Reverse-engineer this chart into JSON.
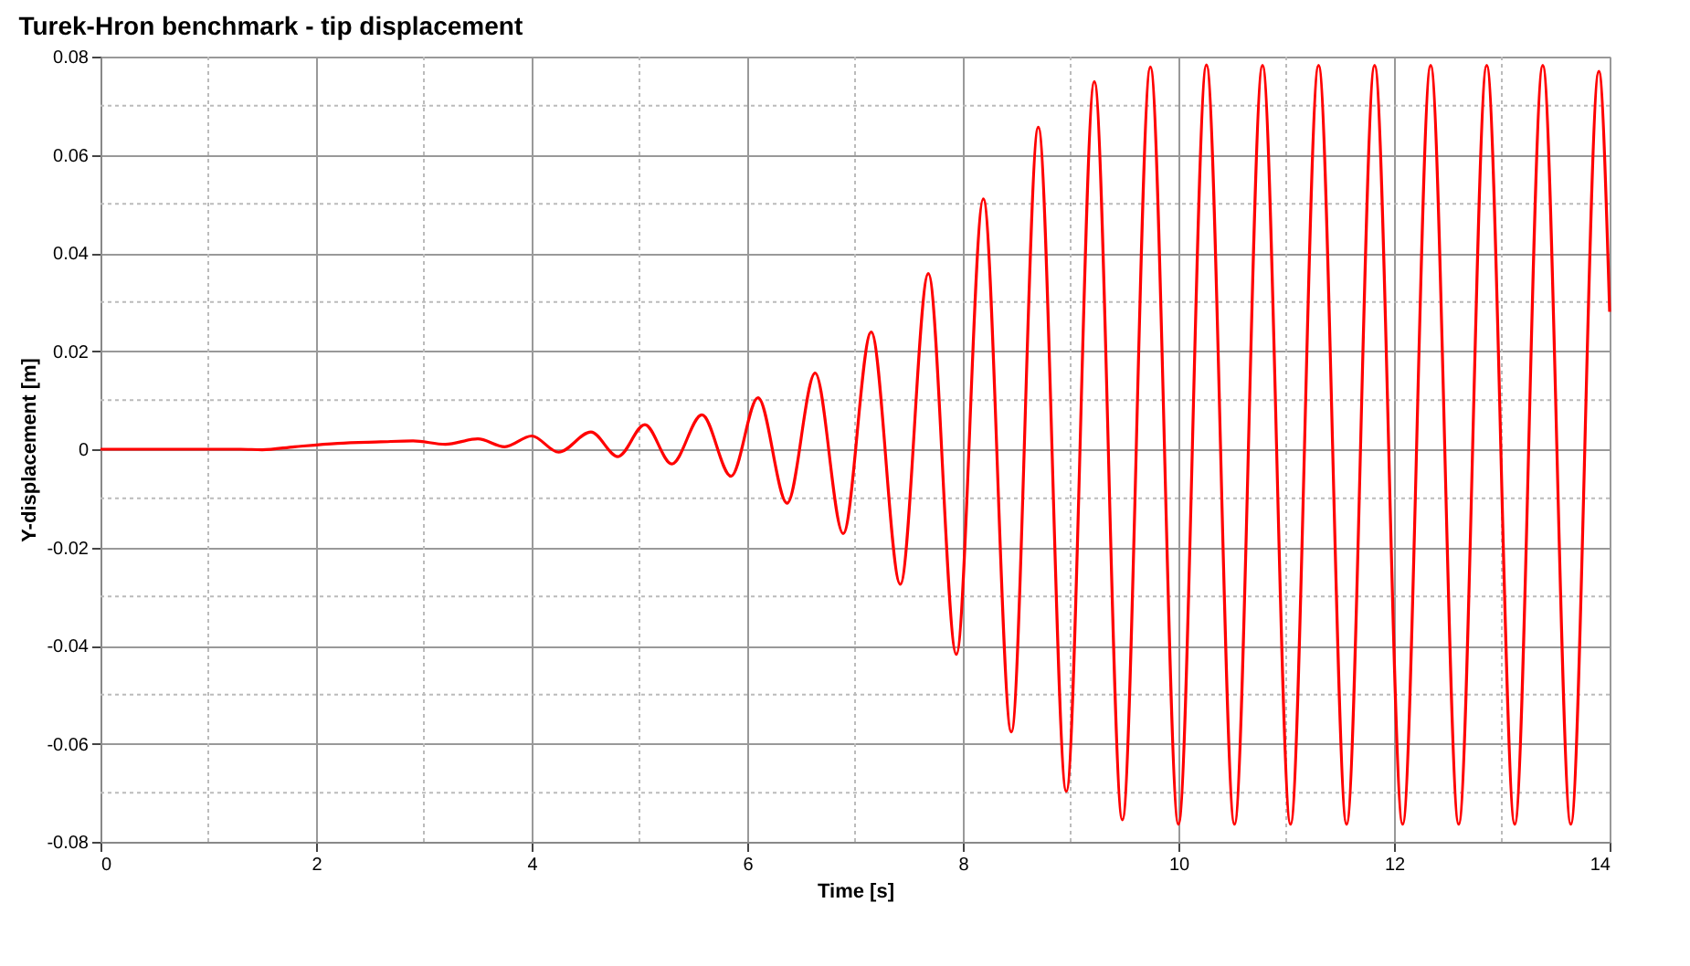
{
  "chart_data": {
    "type": "line",
    "title": "Turek-Hron benchmark - tip displacement",
    "xlabel": "Time [s]",
    "ylabel": "Y-displacement [m]",
    "x": [
      0,
      1.3,
      1.5,
      1.8,
      2.2,
      2.6,
      2.9,
      3.2,
      3.5,
      3.75,
      4.0,
      4.25,
      4.55,
      4.8,
      5.05,
      5.3,
      5.58,
      5.85,
      6.1,
      6.37,
      6.63,
      6.89,
      7.15,
      7.42,
      7.68,
      7.94,
      8.19,
      8.45,
      8.7,
      8.96,
      9.22,
      9.48,
      9.74,
      10.0,
      10.26,
      10.52,
      10.78,
      11.04,
      11.3,
      11.56,
      11.82,
      12.08,
      12.34,
      12.6,
      12.86,
      13.12,
      13.38,
      13.64,
      13.9,
      14.0
    ],
    "series": [
      {
        "color": "#ff0000",
        "values": [
          0,
          0,
          -0.0001,
          0.0005,
          0.0012,
          0.0015,
          0.0017,
          0.001,
          0.0021,
          0.0005,
          0.0027,
          -0.0006,
          0.0035,
          -0.0015,
          0.005,
          -0.003,
          0.007,
          -0.0055,
          0.0105,
          -0.011,
          0.0155,
          -0.0172,
          0.0239,
          -0.0275,
          0.0358,
          -0.0418,
          0.051,
          -0.0576,
          0.0656,
          -0.0697,
          0.0749,
          -0.0755,
          0.0779,
          -0.0764,
          0.0783,
          -0.0764,
          0.0782,
          -0.0764,
          0.0782,
          -0.0764,
          0.0782,
          -0.0764,
          0.0782,
          -0.0764,
          0.0782,
          -0.0764,
          0.0782,
          -0.0764,
          0.077,
          0.028
        ]
      }
    ],
    "xlim": [
      0,
      14
    ],
    "xticks": [
      0,
      2,
      4,
      6,
      8,
      10,
      12,
      14
    ],
    "ylim": [
      -0.08,
      0.08
    ],
    "yticks": [
      -0.08,
      -0.06,
      -0.04,
      -0.02,
      0,
      0.02,
      0.04,
      0.06,
      0.08
    ],
    "grid": true,
    "marker": "none",
    "line_style": "solid"
  }
}
